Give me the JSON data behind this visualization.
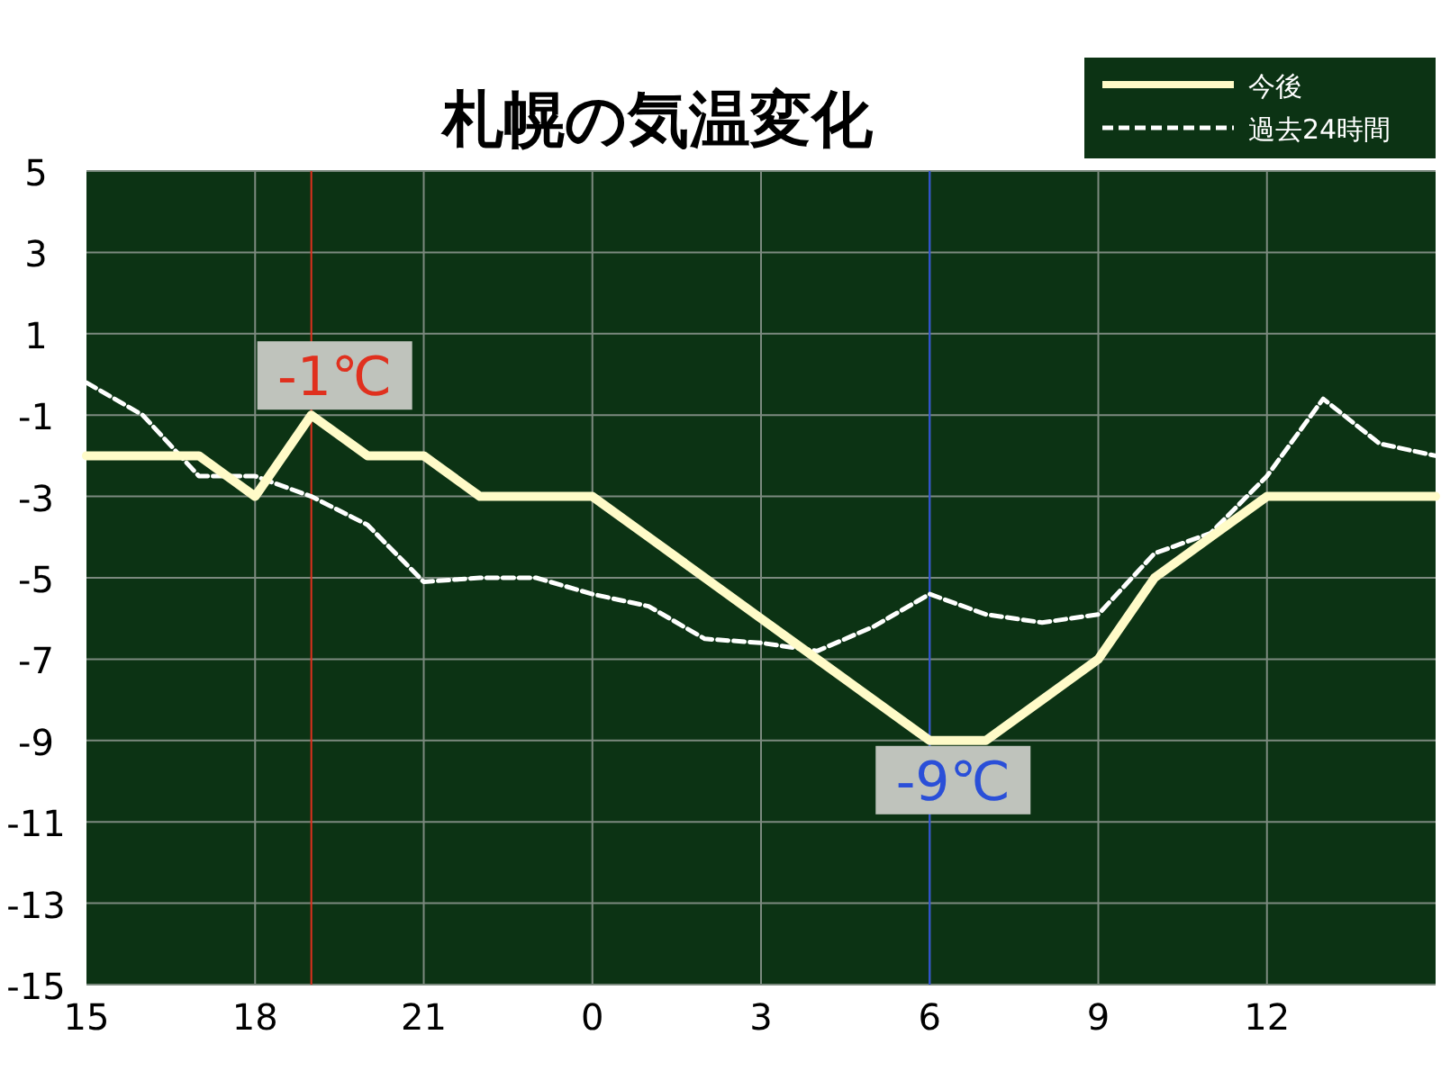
{
  "chart_data": {
    "type": "line",
    "title": "札幌の気温変化",
    "categories": [
      "15",
      null,
      null,
      "18",
      null,
      null,
      "21",
      null,
      null,
      "0",
      null,
      null,
      "3",
      null,
      null,
      "6",
      null,
      null,
      "9",
      null,
      null,
      "12",
      null,
      null,
      null
    ],
    "series": [
      {
        "name": "今後",
        "color": "#fffbc8",
        "line_style": "solid",
        "values": [
          -2,
          -2,
          -2,
          -3,
          -1,
          -2,
          -2,
          -3,
          -3,
          -3,
          -4,
          -5,
          -6,
          -7,
          -8,
          -9,
          -9,
          -8,
          -7,
          -5,
          -4,
          -3,
          -3,
          -3,
          -3
        ]
      },
      {
        "name": "過去24時間",
        "color": "#ffffff",
        "line_style": "dashed",
        "values": [
          -0.2,
          -1,
          -2.5,
          -2.5,
          -3,
          -3.7,
          -5.1,
          -5,
          -5,
          -5.4,
          -5.7,
          -6.5,
          -6.6,
          -6.8,
          -6.2,
          -5.4,
          -5.9,
          -6.1,
          -5.9,
          -4.4,
          -3.9,
          -2.5,
          -0.6,
          -1.7,
          -2
        ]
      }
    ],
    "ylim": [
      -15,
      5
    ],
    "yticks": [
      -15,
      -13,
      -11,
      -9,
      -7,
      -5,
      -3,
      -1,
      1,
      3,
      5
    ],
    "grid": true,
    "legend": "top right",
    "ref_lines": [
      {
        "axis": "x",
        "value": "6",
        "label": null,
        "color": "#2a4fd8"
      }
    ],
    "annotations": [
      "-1℃",
      {
        "text": "-9℃",
        "x": "6",
        "y": -9
      }
    ]
  }
}
